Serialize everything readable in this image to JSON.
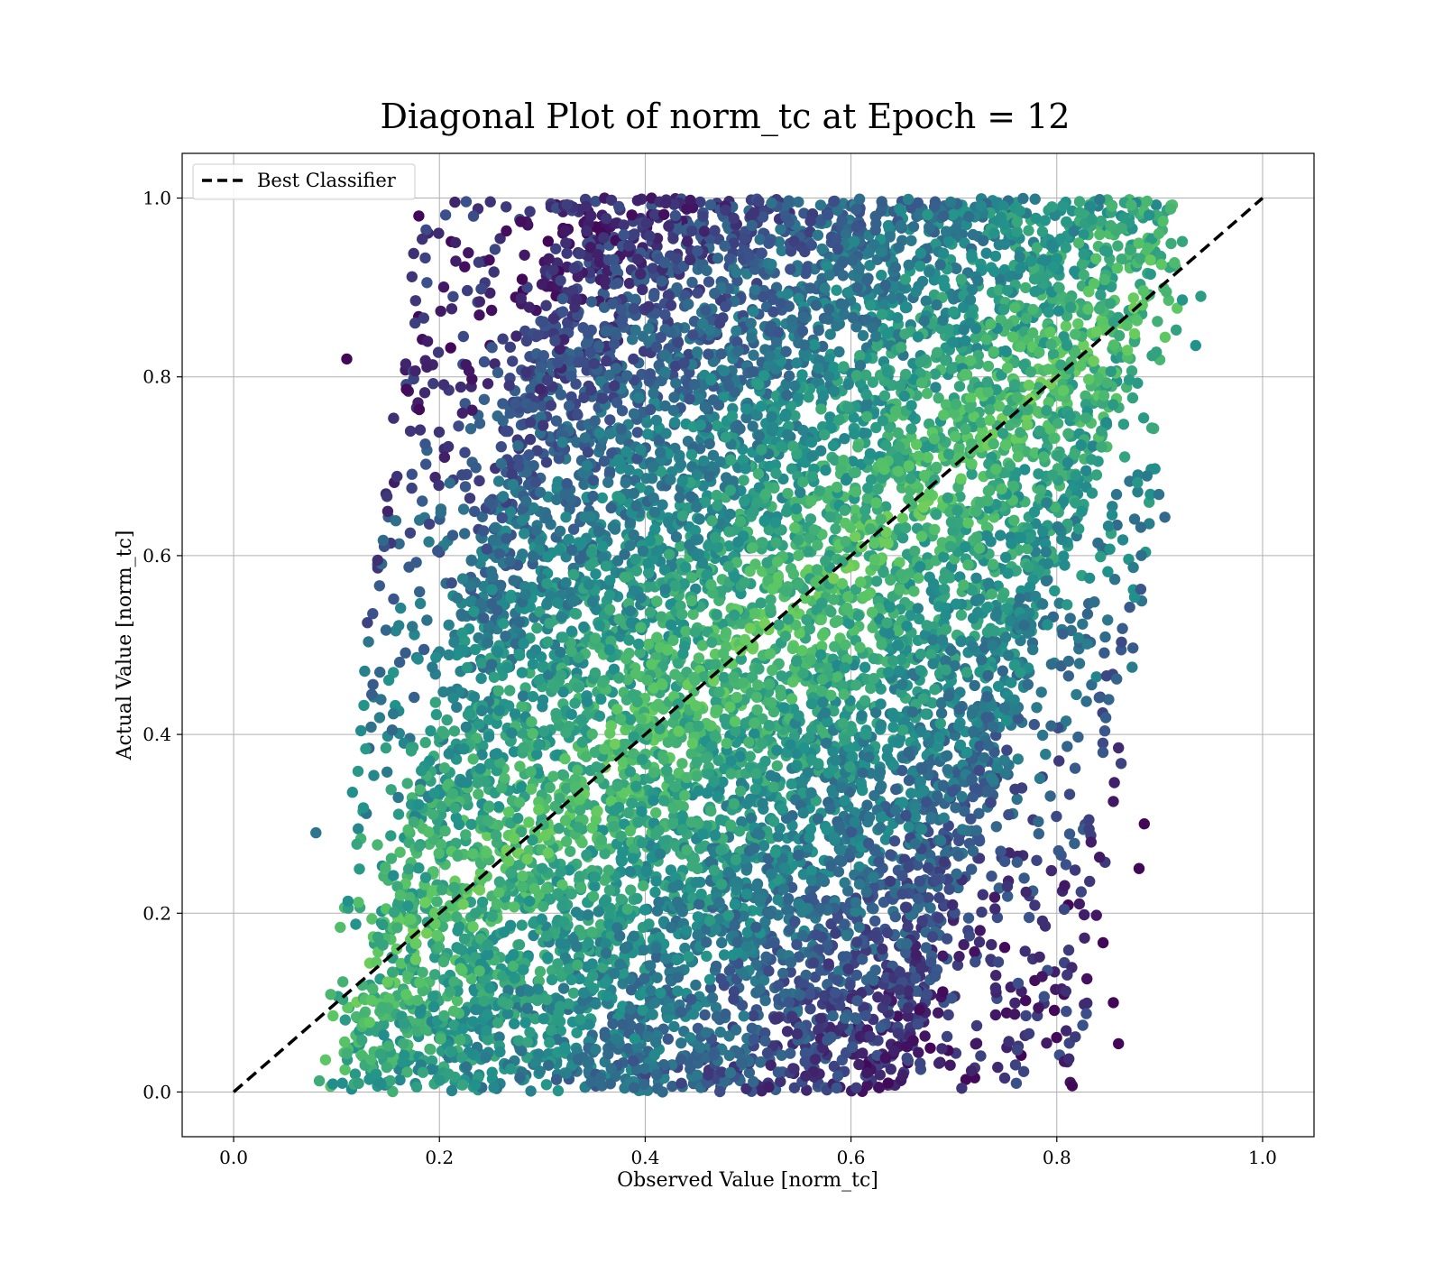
{
  "figure": {
    "title": "Diagonal Plot of norm_tc at Epoch = 12"
  },
  "chart_data": {
    "type": "scatter",
    "title": "Diagonal Plot of norm_tc at Epoch = 12",
    "xlabel": "Observed Value [norm_tc]",
    "ylabel": "Actual Value [norm_tc]",
    "xlim": [
      -0.05,
      1.05
    ],
    "ylim": [
      -0.05,
      1.05
    ],
    "grid": true,
    "legend_position": "top-left",
    "colormap": "viridis",
    "colormap_stops": [
      "#440154",
      "#3b528b",
      "#21918c",
      "#5ec962",
      "#fde725"
    ],
    "x_ticks": [
      0.0,
      0.2,
      0.4,
      0.6,
      0.8,
      1.0
    ],
    "x_tick_labels": [
      "0.0",
      "0.2",
      "0.4",
      "0.6",
      "0.8",
      "1.0"
    ],
    "y_ticks": [
      0.0,
      0.2,
      0.4,
      0.6,
      0.8,
      1.0
    ],
    "y_tick_labels": [
      "0.0",
      "0.2",
      "0.4",
      "0.6",
      "0.8",
      "1.0"
    ],
    "legend": [
      {
        "label": "Best Classifier",
        "style": "dashed",
        "color": "#000000"
      }
    ],
    "series": [
      {
        "name": "Best Classifier",
        "type": "line",
        "style": "dashed",
        "color": "#000000",
        "x": [
          0.0,
          1.0
        ],
        "y": [
          0.0,
          1.0
        ]
      },
      {
        "type": "scatter",
        "marker": "circle",
        "distribution": {
          "y_range": [
            0.0,
            1.0
          ],
          "x_range_at_y0": [
            0.08,
            0.82
          ],
          "x_range_at_y1": [
            0.18,
            0.94
          ],
          "dense_core_at_y0": [
            0.1,
            0.65
          ],
          "dense_core_at_y1": [
            0.32,
            0.92
          ]
        },
        "points": [
          {
            "x": 0.11,
            "y": 0.82
          },
          {
            "x": 0.18,
            "y": 0.98
          },
          {
            "x": 0.13,
            "y": 0.525
          },
          {
            "x": 0.14,
            "y": 0.595
          },
          {
            "x": 0.08,
            "y": 0.29
          },
          {
            "x": 0.885,
            "y": 0.3
          },
          {
            "x": 0.88,
            "y": 0.25
          },
          {
            "x": 0.86,
            "y": 0.385
          },
          {
            "x": 0.855,
            "y": 0.325
          },
          {
            "x": 0.845,
            "y": 0.167
          },
          {
            "x": 0.86,
            "y": 0.054
          },
          {
            "x": 0.855,
            "y": 0.1
          },
          {
            "x": 0.905,
            "y": 0.643
          },
          {
            "x": 0.935,
            "y": 0.835
          },
          {
            "x": 0.94,
            "y": 0.89
          },
          {
            "x": 0.815,
            "y": 0.007
          },
          {
            "x": 0.535,
            "y": 0.43
          },
          {
            "x": 0.37,
            "y": 0.79
          },
          {
            "x": 0.66,
            "y": 0.425
          },
          {
            "x": 0.555,
            "y": 0.94
          },
          {
            "x": 0.235,
            "y": 0.2
          },
          {
            "x": 0.3,
            "y": 0.25
          },
          {
            "x": 0.185,
            "y": 0.495
          },
          {
            "x": 0.45,
            "y": 0.6
          },
          {
            "x": 0.205,
            "y": 0.71
          },
          {
            "x": 0.69,
            "y": 0.98
          }
        ]
      }
    ]
  }
}
